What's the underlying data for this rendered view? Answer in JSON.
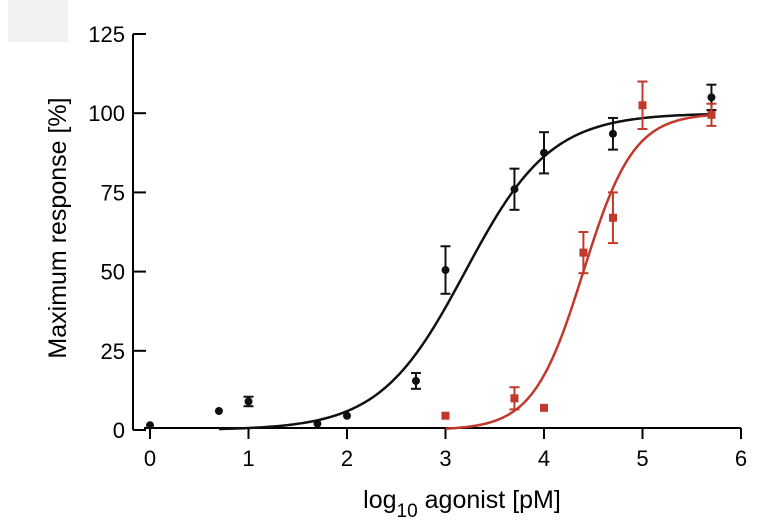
{
  "chart_data": {
    "type": "scatter",
    "xlabel": "log10 agonist [pM]",
    "xlabel_parts": {
      "base": "log",
      "subscript": "10",
      "rest": " agonist [pM]"
    },
    "ylabel": "Maximum response [%]",
    "xlim": [
      0,
      6
    ],
    "ylim": [
      0,
      125
    ],
    "x_ticks": [
      0,
      1,
      2,
      3,
      4,
      5,
      6
    ],
    "x_tick_labels": [
      "0",
      "1",
      "2",
      "3",
      "4",
      "5",
      "6"
    ],
    "y_ticks": [
      0,
      25,
      50,
      75,
      100,
      125
    ],
    "y_tick_labels": [
      "0",
      "25",
      "50",
      "75",
      "100",
      "125"
    ],
    "grid": false,
    "legend": "none",
    "series": [
      {
        "color": "#111111",
        "marker": "circle",
        "points": [
          {
            "x": 0,
            "y": 1.5,
            "err": 0
          },
          {
            "x": 0.7,
            "y": 6,
            "err": 0
          },
          {
            "x": 1.0,
            "y": 9,
            "err": 1.5
          },
          {
            "x": 1.7,
            "y": 2,
            "err": 0
          },
          {
            "x": 2.0,
            "y": 4.5,
            "err": 0
          },
          {
            "x": 2.7,
            "y": 15.5,
            "err": 2.5
          },
          {
            "x": 3.0,
            "y": 50.5,
            "err": 7.5
          },
          {
            "x": 3.7,
            "y": 76,
            "err": 6.5
          },
          {
            "x": 4.0,
            "y": 87.5,
            "err": 6.5
          },
          {
            "x": 4.7,
            "y": 93.5,
            "err": 5
          },
          {
            "x": 5.7,
            "y": 105,
            "err": 4
          }
        ],
        "fit": {
          "bottom": 0,
          "top": 100,
          "log_ec50": 3.2,
          "hill": 1.0,
          "x_range": [
            0.7,
            5.7
          ]
        }
      },
      {
        "color": "#c0392b",
        "marker": "square",
        "points": [
          {
            "x": 3.0,
            "y": 4.5,
            "err": 0
          },
          {
            "x": 3.7,
            "y": 10,
            "err": 3.5
          },
          {
            "x": 4.0,
            "y": 7,
            "err": 0
          },
          {
            "x": 4.4,
            "y": 56,
            "err": 6.5
          },
          {
            "x": 4.7,
            "y": 67,
            "err": 8
          },
          {
            "x": 5.0,
            "y": 102.5,
            "err": 7.5
          },
          {
            "x": 5.7,
            "y": 99.5,
            "err": 3.5
          }
        ],
        "fit": {
          "bottom": 0,
          "top": 100,
          "log_ec50": 4.4,
          "hill": 1.7,
          "x_range": [
            3.0,
            5.7
          ]
        }
      }
    ]
  }
}
